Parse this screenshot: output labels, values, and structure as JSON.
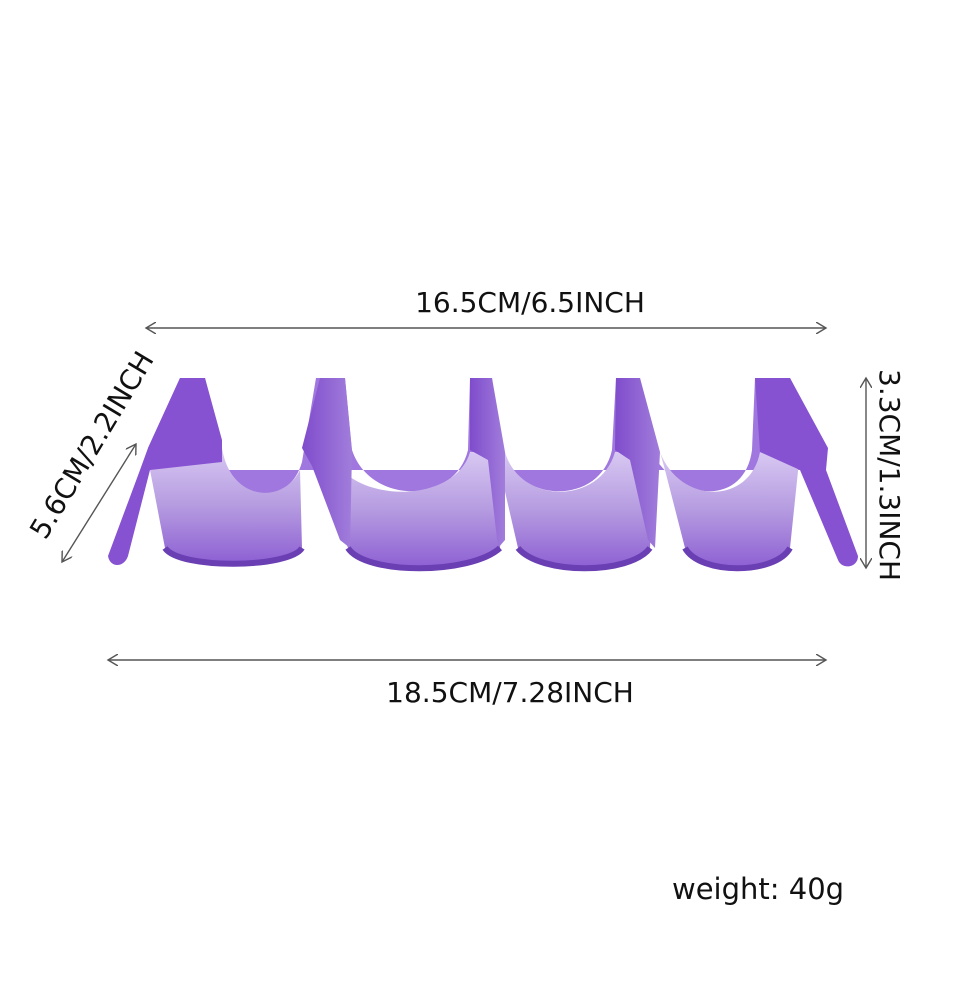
{
  "dimensions": {
    "top_width": "16.5CM/6.5INCH",
    "bottom_width": "18.5CM/7.28INCH",
    "depth": "5.6CM/2.2INCH",
    "height": "3.3CM/1.3INCH"
  },
  "weight": "weight: 40g",
  "colors": {
    "product": "#8a5bd0",
    "product_light": "#b49bde",
    "product_dark": "#6a3fb3",
    "lines": "#555555",
    "text": "#111111",
    "background": "#ffffff"
  }
}
